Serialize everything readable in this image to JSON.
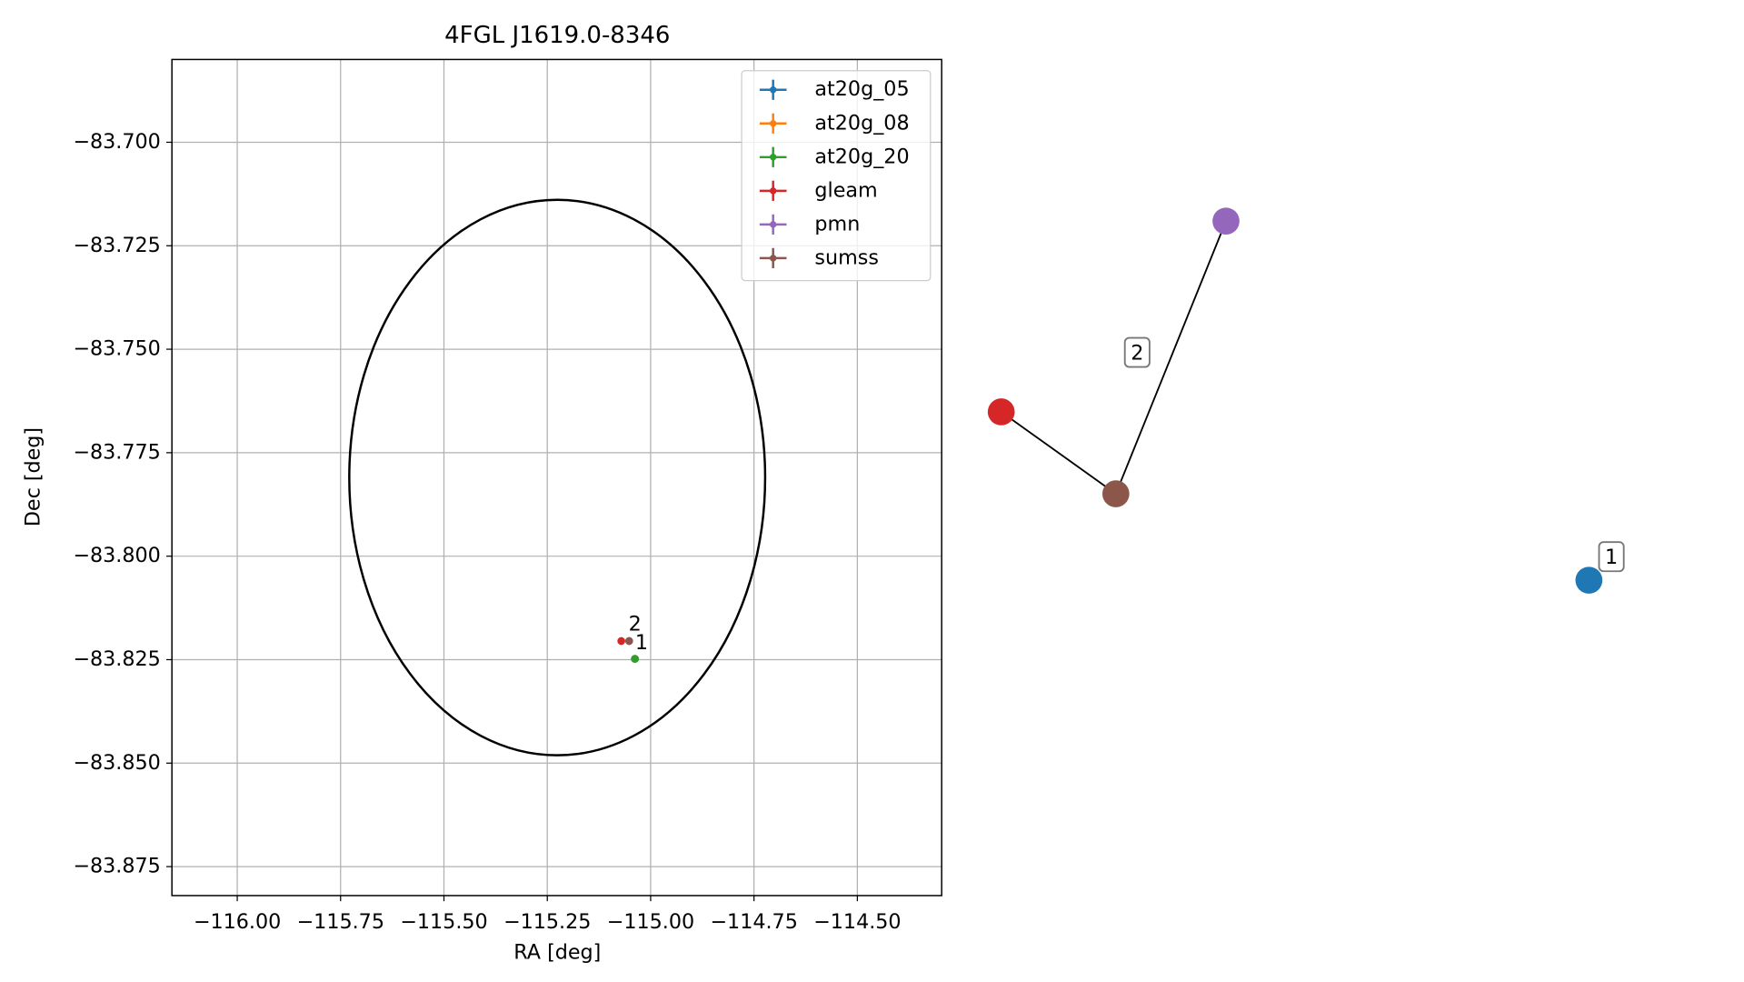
{
  "chart_data": {
    "type": "scatter",
    "title": "4FGL J1619.0-8346",
    "xlabel": "RA [deg]",
    "ylabel": "Dec [deg]",
    "xlim": [
      -116.158,
      -114.296
    ],
    "ylim": [
      -83.882,
      -83.68
    ],
    "xticks": [
      {
        "value": -116.0,
        "label": "−116.00"
      },
      {
        "value": -115.75,
        "label": "−115.75"
      },
      {
        "value": -115.5,
        "label": "−115.50"
      },
      {
        "value": -115.25,
        "label": "−115.25"
      },
      {
        "value": -115.0,
        "label": "−115.00"
      },
      {
        "value": -114.75,
        "label": "−114.75"
      },
      {
        "value": -114.5,
        "label": "−114.50"
      }
    ],
    "yticks": [
      {
        "value": -83.7,
        "label": "−83.700"
      },
      {
        "value": -83.725,
        "label": "−83.725"
      },
      {
        "value": -83.75,
        "label": "−83.750"
      },
      {
        "value": -83.775,
        "label": "−83.775"
      },
      {
        "value": -83.8,
        "label": "−83.800"
      },
      {
        "value": -83.825,
        "label": "−83.825"
      },
      {
        "value": -83.85,
        "label": "−83.850"
      },
      {
        "value": -83.875,
        "label": "−83.875"
      }
    ],
    "grid": true,
    "legend": "upper right",
    "ellipse": {
      "center": [
        -115.226,
        -83.781
      ],
      "radii": [
        0.503,
        0.0671
      ]
    },
    "series": [
      {
        "name": "at20g_05",
        "color": "#1f77b4",
        "x": [
          -115.038
        ],
        "values": [
          -83.8248
        ]
      },
      {
        "name": "at20g_08",
        "color": "#ff7f0e",
        "x": [
          -115.038
        ],
        "values": [
          -83.8248
        ]
      },
      {
        "name": "at20g_20",
        "color": "#2ca02c",
        "x": [
          -115.038
        ],
        "values": [
          -83.8248
        ]
      },
      {
        "name": "gleam",
        "color": "#d62728",
        "x": [
          -115.071
        ],
        "values": [
          -83.8205
        ]
      },
      {
        "name": "pmn",
        "color": "#9467bd",
        "x": [
          -115.052
        ],
        "values": [
          -83.8205
        ]
      },
      {
        "name": "sumss",
        "color": "#8c564b",
        "x": [
          -115.052
        ],
        "values": [
          -83.8205
        ]
      }
    ],
    "annotations": [
      {
        "text": "2",
        "x": -115.038,
        "y": -83.8165
      },
      {
        "text": "1",
        "x": -115.022,
        "y": -83.821
      }
    ]
  },
  "graph": {
    "nodes": [
      {
        "color": "#9467bd"
      },
      {
        "color": "#d62728"
      },
      {
        "color": "#8c564b"
      },
      {
        "color": "#1f77b4"
      }
    ],
    "groups": [
      {
        "label": "2"
      },
      {
        "label": "1"
      }
    ]
  }
}
